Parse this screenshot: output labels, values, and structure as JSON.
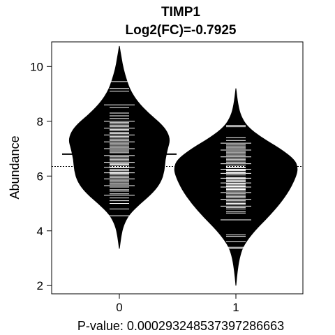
{
  "chart_data": {
    "type": "beanplot",
    "title": "TIMP1",
    "subtitle": "Log2(FC)=-0.7925",
    "xlabel": "P-value: 0.000293248537397286663",
    "ylabel": "Abundance",
    "categories": [
      "0",
      "1"
    ],
    "ylim": [
      1.7,
      10.9
    ],
    "yticks": [
      "2",
      "4",
      "6",
      "8",
      "10"
    ],
    "overall_mean": 6.35,
    "groups": [
      {
        "name": "0",
        "mean": 6.8,
        "min": 3.35,
        "max": 10.75,
        "density": [
          [
            3.35,
            0.0
          ],
          [
            3.8,
            0.02
          ],
          [
            4.2,
            0.05
          ],
          [
            4.6,
            0.12
          ],
          [
            5.0,
            0.26
          ],
          [
            5.4,
            0.42
          ],
          [
            5.8,
            0.52
          ],
          [
            6.2,
            0.56
          ],
          [
            6.6,
            0.57
          ],
          [
            7.0,
            0.6
          ],
          [
            7.3,
            0.63
          ],
          [
            7.6,
            0.6
          ],
          [
            7.9,
            0.52
          ],
          [
            8.3,
            0.36
          ],
          [
            8.7,
            0.23
          ],
          [
            9.1,
            0.14
          ],
          [
            9.5,
            0.09
          ],
          [
            9.9,
            0.05
          ],
          [
            10.3,
            0.025
          ],
          [
            10.75,
            0.0
          ]
        ],
        "values": [
          4.55,
          4.8,
          5.0,
          5.1,
          5.2,
          5.3,
          5.35,
          5.45,
          5.5,
          5.6,
          5.65,
          5.7,
          5.75,
          5.8,
          5.85,
          5.9,
          5.95,
          6.0,
          6.05,
          6.1,
          6.12,
          6.15,
          6.2,
          6.25,
          6.3,
          6.32,
          6.35,
          6.4,
          6.42,
          6.45,
          6.5,
          6.55,
          6.6,
          6.65,
          6.7,
          6.75,
          6.8,
          6.85,
          6.9,
          6.95,
          7.0,
          7.05,
          7.1,
          7.15,
          7.2,
          7.25,
          7.3,
          7.35,
          7.4,
          7.45,
          7.5,
          7.55,
          7.6,
          7.65,
          7.7,
          7.75,
          7.8,
          7.85,
          7.9,
          7.95,
          8.0,
          8.1,
          8.2,
          8.3,
          8.5,
          8.6,
          9.1,
          9.2,
          9.45
        ]
      },
      {
        "name": "1",
        "mean": 6.0,
        "min": 2.0,
        "max": 9.2,
        "density": [
          [
            2.0,
            0.0
          ],
          [
            2.6,
            0.02
          ],
          [
            3.1,
            0.05
          ],
          [
            3.5,
            0.1
          ],
          [
            4.0,
            0.23
          ],
          [
            4.5,
            0.4
          ],
          [
            5.0,
            0.55
          ],
          [
            5.5,
            0.67
          ],
          [
            6.0,
            0.75
          ],
          [
            6.3,
            0.77
          ],
          [
            6.6,
            0.73
          ],
          [
            7.0,
            0.55
          ],
          [
            7.4,
            0.32
          ],
          [
            7.8,
            0.14
          ],
          [
            8.2,
            0.06
          ],
          [
            8.6,
            0.025
          ],
          [
            9.2,
            0.0
          ]
        ],
        "values": [
          3.35,
          3.4,
          3.6,
          3.8,
          3.85,
          4.4,
          4.65,
          4.7,
          4.8,
          4.85,
          4.9,
          4.95,
          5.0,
          5.05,
          5.1,
          5.15,
          5.2,
          5.25,
          5.3,
          5.35,
          5.4,
          5.45,
          5.5,
          5.52,
          5.55,
          5.6,
          5.62,
          5.65,
          5.7,
          5.72,
          5.75,
          5.8,
          5.82,
          5.85,
          5.9,
          5.92,
          5.95,
          6.0,
          6.02,
          6.05,
          6.1,
          6.12,
          6.15,
          6.2,
          6.22,
          6.25,
          6.3,
          6.32,
          6.35,
          6.4,
          6.45,
          6.5,
          6.55,
          6.6,
          6.65,
          6.7,
          6.75,
          6.8,
          6.85,
          6.9,
          6.95,
          7.0,
          7.05,
          7.1,
          7.15,
          7.2,
          7.3,
          7.4,
          7.8,
          7.85
        ]
      }
    ]
  }
}
